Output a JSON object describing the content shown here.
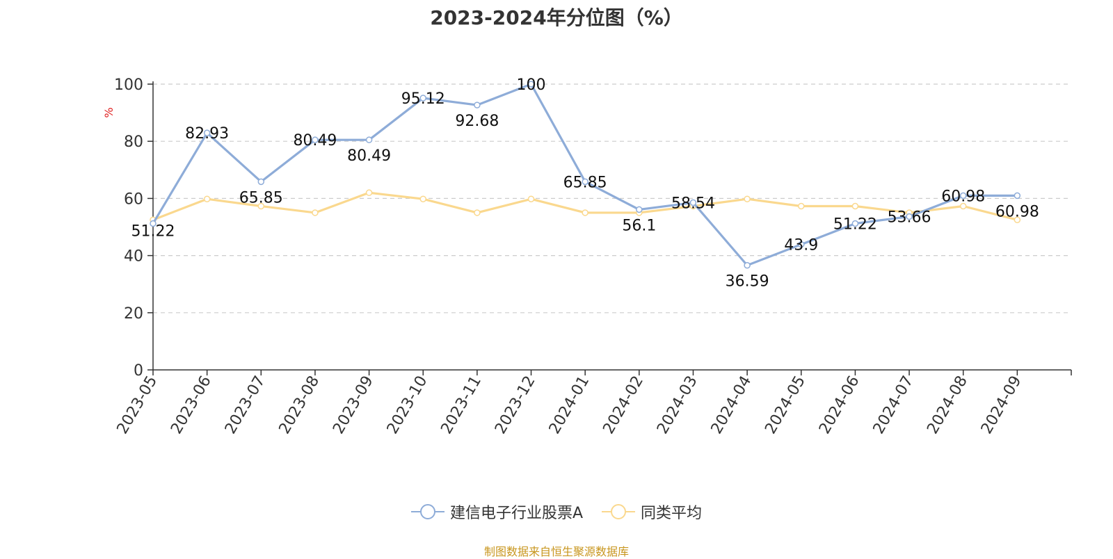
{
  "chart_data": {
    "type": "line",
    "title": "2023-2024年分位图（%）",
    "ylabel": "%",
    "xlabel": "",
    "ylim": [
      0,
      100
    ],
    "yticks": [
      0,
      20,
      40,
      60,
      80,
      100
    ],
    "grid": true,
    "legend_position": "bottom-center",
    "categories": [
      "2023-05",
      "2023-06",
      "2023-07",
      "2023-08",
      "2023-09",
      "2023-10",
      "2023-11",
      "2023-12",
      "2024-01",
      "2024-02",
      "2024-03",
      "2024-04",
      "2024-05",
      "2024-06",
      "2024-07",
      "2024-08",
      "2024-09"
    ],
    "series": [
      {
        "name": "建信电子行业股票A",
        "color": "#8eacd8",
        "show_labels": true,
        "values": [
          51.22,
          82.93,
          65.85,
          80.49,
          80.49,
          95.12,
          92.68,
          100,
          65.85,
          56.1,
          58.54,
          36.59,
          43.9,
          51.22,
          53.66,
          60.98,
          60.98
        ]
      },
      {
        "name": "同类平均",
        "color": "#fad88e",
        "show_labels": false,
        "values": [
          52.5,
          59.8,
          57.3,
          55,
          62,
          59.8,
          55,
          59.8,
          55,
          55,
          57.3,
          59.8,
          57.3,
          57.3,
          55,
          57.3,
          52.5
        ]
      }
    ]
  },
  "source_note": "制图数据来自恒生聚源数据库",
  "colors": {
    "axis": "#333333",
    "grid": "#cccccc",
    "ylabel": "#e02020",
    "source": "#c8961e"
  }
}
